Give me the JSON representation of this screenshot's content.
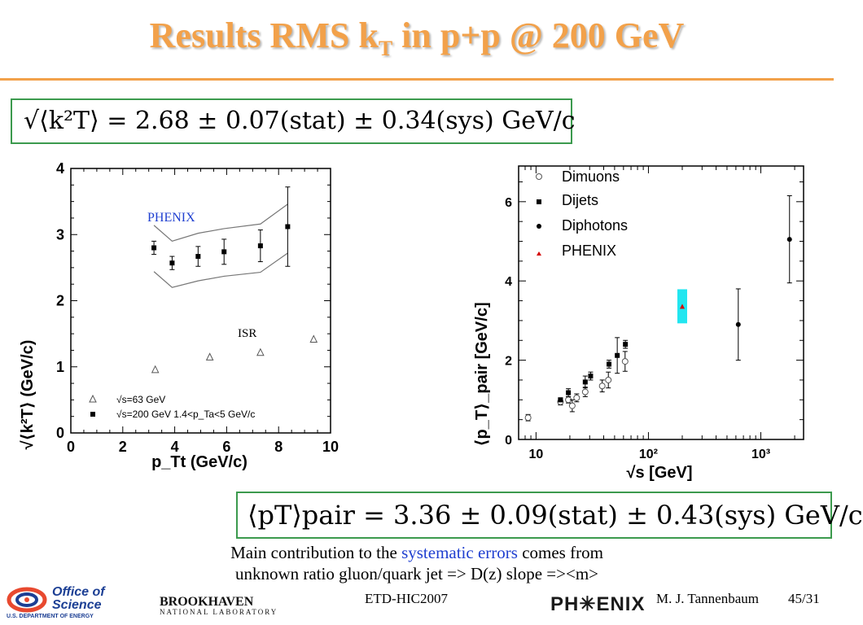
{
  "slide": {
    "title_main": "Results RMS k",
    "title_sub": "T",
    "title_rest": " in p+p @ 200 GeV",
    "accent_color": "#f2a14a",
    "equation1_text": "√⟨k²T⟩ = 2.68 ± 0.07(stat) ± 0.34(sys)  GeV/c",
    "equation2_text": "⟨pT⟩pair = 3.36 ± 0.09(stat) ± 0.43(sys)  GeV/c",
    "caption_line1_a": "Main contribution to the ",
    "caption_line1_b": "systematic errors",
    "caption_line1_c": " comes from",
    "caption_line2": "unknown ratio gluon/quark jet => D(z) slope =><m>",
    "footer_conference": "ETD-HIC2007",
    "footer_author": "M. J. Tannenbaum",
    "footer_page": "45/31",
    "logo_office_line1": "Office of",
    "logo_office_line2": "Science",
    "logo_office_sub": "U.S. DEPARTMENT OF ENERGY",
    "logo_bnl_main": "BROOKHAVEN",
    "logo_bnl_sub": "NATIONAL LABORATORY",
    "logo_phenix": "PH✳ENIX"
  },
  "chart_data": [
    {
      "type": "scatter",
      "xlabel": "p_Tt (GeV/c)",
      "ylabel": "√⟨k²T⟩ (GeV/c)",
      "xlim": [
        0,
        10
      ],
      "ylim": [
        0,
        4
      ],
      "xticks": [
        0,
        2,
        4,
        6,
        8,
        10
      ],
      "yticks": [
        0,
        1,
        2,
        3,
        4
      ],
      "annotations": [
        "PHENIX",
        "ISR"
      ],
      "legend": {
        "placement": "bottom-left",
        "entries": [
          "√s=63 GeV",
          "√s=200 GeV 1.4<p_Ta<5 GeV/c"
        ]
      },
      "series": [
        {
          "name": "√s=63 GeV",
          "marker": "open-triangle",
          "x": [
            3.25,
            5.35,
            7.3,
            9.35
          ],
          "y": [
            0.95,
            1.14,
            1.21,
            1.41
          ]
        },
        {
          "name": "√s=200 GeV 1.4<p_Ta<5 GeV/c",
          "marker": "filled-square",
          "x": [
            3.2,
            3.9,
            4.9,
            5.9,
            7.3,
            8.35
          ],
          "y": [
            2.8,
            2.57,
            2.67,
            2.74,
            2.83,
            3.12
          ],
          "yerr": [
            0.1,
            0.1,
            0.15,
            0.19,
            0.24,
            0.6
          ]
        }
      ],
      "systematic_band": {
        "x": [
          3.2,
          3.9,
          4.9,
          5.9,
          7.3,
          8.35
        ],
        "upper": [
          3.14,
          2.9,
          3.02,
          3.09,
          3.16,
          3.46
        ],
        "lower": [
          2.44,
          2.2,
          2.3,
          2.37,
          2.43,
          2.72
        ]
      }
    },
    {
      "type": "scatter",
      "xlabel": "√s [GeV]",
      "ylabel": "⟨p_T⟩_pair [GeV/c]",
      "xscale": "log",
      "xlim": [
        7,
        2400
      ],
      "ylim": [
        0,
        6.9
      ],
      "xticks": [
        10,
        100,
        1000
      ],
      "xtick_labels": [
        "10",
        "10²",
        "10³"
      ],
      "yticks": [
        0,
        2,
        4,
        6
      ],
      "legend": {
        "placement": "top-left",
        "entries": [
          "Dimuons",
          "Dijets",
          "Diphotons",
          "PHENIX"
        ]
      },
      "series": [
        {
          "name": "Dimuons",
          "marker": "open-circle",
          "x": [
            8.5,
            16.5,
            19.4,
            21.0,
            23.0,
            27.4,
            38.8,
            44.0,
            62.0
          ],
          "y": [
            0.55,
            0.95,
            1.0,
            0.85,
            1.05,
            1.2,
            1.35,
            1.5,
            1.97
          ],
          "yerr": [
            0.08,
            0.08,
            0.08,
            0.15,
            0.1,
            0.12,
            0.15,
            0.2,
            0.25
          ]
        },
        {
          "name": "Dijets",
          "marker": "filled-square",
          "x": [
            16.5,
            19.4,
            27.4,
            30.6,
            44.6,
            52.8,
            62.4
          ],
          "y": [
            1.0,
            1.18,
            1.45,
            1.6,
            1.9,
            2.12,
            2.4
          ],
          "yerr": [
            0.05,
            0.1,
            0.15,
            0.1,
            0.1,
            0.45,
            0.1
          ]
        },
        {
          "name": "Diphotons",
          "marker": "filled-circle",
          "x": [
            630,
            1800
          ],
          "y": [
            2.9,
            5.05
          ],
          "yerr": [
            0.9,
            1.1
          ]
        },
        {
          "name": "PHENIX",
          "marker": "red-triangle",
          "color": "#d40000",
          "highlight": "#22e6f0",
          "x": [
            200
          ],
          "y": [
            3.36
          ],
          "yerr": [
            0.43
          ]
        }
      ]
    }
  ]
}
